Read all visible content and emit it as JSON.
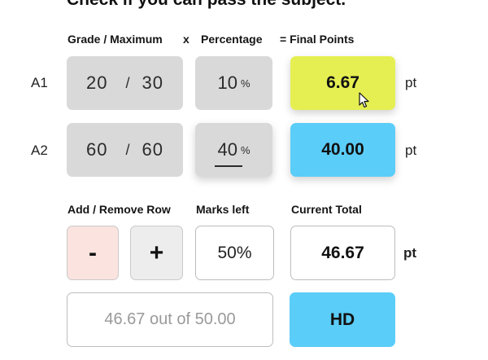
{
  "title": "Check if you can pass the subject.",
  "headers": {
    "grade_max": "Grade  /  Maximum",
    "times": "x",
    "percentage": "Percentage",
    "equals_final": "=  Final Points"
  },
  "rows": [
    {
      "label": "A1",
      "grade": "20",
      "slash": "/",
      "maximum": "30",
      "percentage": "10",
      "percent_symbol": "%",
      "final_points": "6.67",
      "unit": "pt"
    },
    {
      "label": "A2",
      "grade": "60",
      "slash": "/",
      "maximum": "60",
      "percentage": "40",
      "percent_symbol": "%",
      "final_points": "40.00",
      "unit": "pt"
    }
  ],
  "controls": {
    "add_remove_label": "Add / Remove Row",
    "minus_label": "-",
    "plus_label": "+",
    "marks_left_label": "Marks left",
    "marks_left_value": "50%",
    "current_total_label": "Current Total",
    "current_total_value": "46.67",
    "current_total_unit": "pt"
  },
  "summary": {
    "text": "46.67 out of 50.00",
    "grade_badge": "HD"
  },
  "colors": {
    "yellow": "#e5ef52",
    "blue": "#5bcdf9",
    "grey_cell": "#d9d9d9",
    "minus_bg": "#fbe3e0"
  },
  "icons": {
    "cursor": "mouse-pointer-icon"
  }
}
